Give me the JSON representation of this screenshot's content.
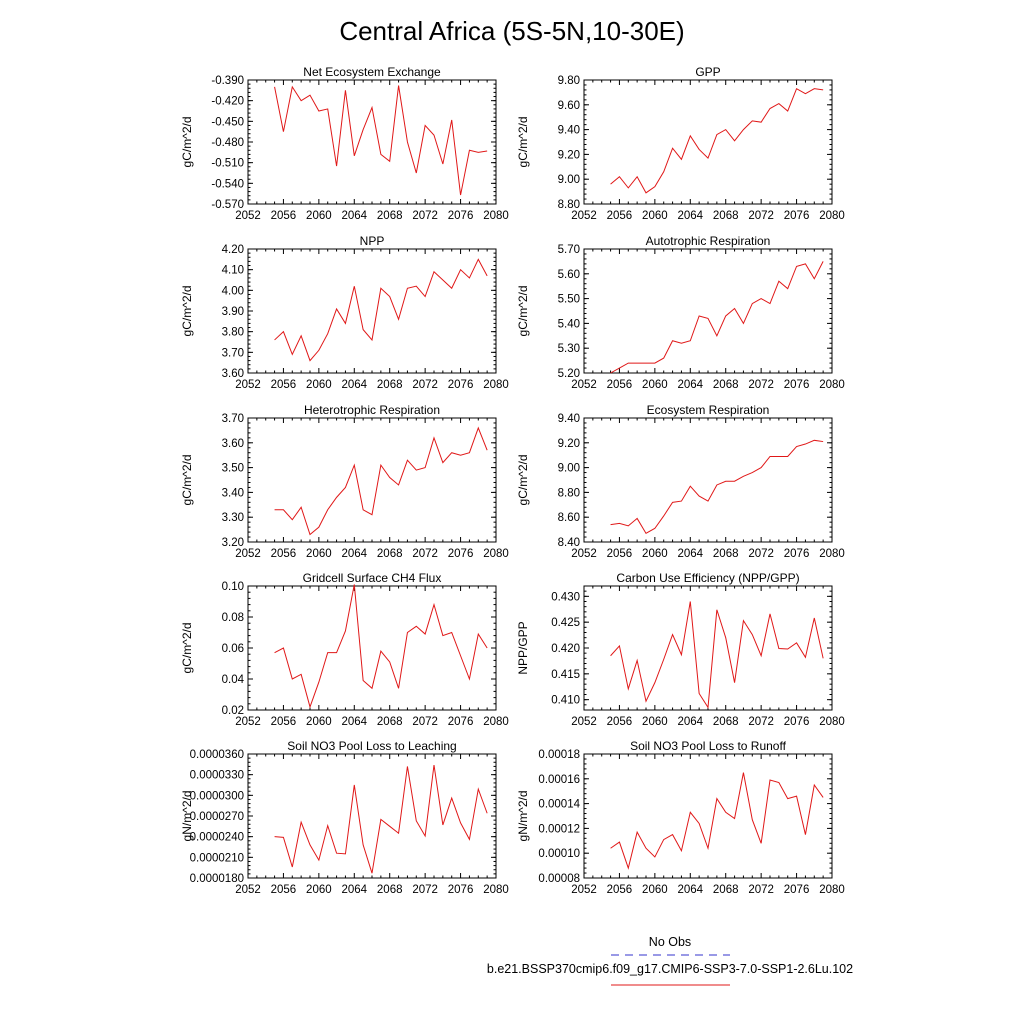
{
  "page_title": "Central Africa (5S-5N,10-30E)",
  "legend": {
    "obs_label": "No Obs",
    "obs_color": "#3333cc",
    "model_label": "b.e21.BSSP370cmip6.f09_g17.CMIP6-SSP3-7.0-SSP1-2.6Lu.102",
    "model_color": "#e01818"
  },
  "chart_data": [
    {
      "type": "line",
      "title": "Net Ecosystem Exchange",
      "ylabel": "gC/m^2/d",
      "xlim": [
        2052,
        2080
      ],
      "ylim": [
        -0.57,
        -0.39
      ],
      "xticks": [
        "2052",
        "2056",
        "2060",
        "2064",
        "2068",
        "2072",
        "2076",
        "2080"
      ],
      "yticks": [
        "-0.570",
        "-0.540",
        "-0.510",
        "-0.480",
        "-0.450",
        "-0.420",
        "-0.390"
      ],
      "x": [
        2055,
        2056,
        2057,
        2058,
        2059,
        2060,
        2061,
        2062,
        2063,
        2064,
        2065,
        2066,
        2067,
        2068,
        2069,
        2070,
        2071,
        2072,
        2073,
        2074,
        2075,
        2076,
        2077,
        2078,
        2079
      ],
      "series": [
        {
          "values": [
            -0.4,
            -0.465,
            -0.4,
            -0.42,
            -0.412,
            -0.435,
            -0.432,
            -0.515,
            -0.405,
            -0.5,
            -0.462,
            -0.43,
            -0.498,
            -0.508,
            -0.398,
            -0.48,
            -0.525,
            -0.456,
            -0.47,
            -0.512,
            -0.448,
            -0.557,
            -0.492,
            -0.495,
            -0.493
          ],
          "color": "#e01818"
        }
      ]
    },
    {
      "type": "line",
      "title": "GPP",
      "ylabel": "gC/m^2/d",
      "xlim": [
        2052,
        2080
      ],
      "ylim": [
        8.8,
        9.8
      ],
      "xticks": [
        "2052",
        "2056",
        "2060",
        "2064",
        "2068",
        "2072",
        "2076",
        "2080"
      ],
      "yticks": [
        "8.80",
        "9.00",
        "9.20",
        "9.40",
        "9.60",
        "9.80"
      ],
      "x": [
        2055,
        2056,
        2057,
        2058,
        2059,
        2060,
        2061,
        2062,
        2063,
        2064,
        2065,
        2066,
        2067,
        2068,
        2069,
        2070,
        2071,
        2072,
        2073,
        2074,
        2075,
        2076,
        2077,
        2078,
        2079
      ],
      "series": [
        {
          "values": [
            8.96,
            9.02,
            8.93,
            9.02,
            8.89,
            8.94,
            9.06,
            9.25,
            9.16,
            9.35,
            9.24,
            9.17,
            9.36,
            9.4,
            9.31,
            9.4,
            9.47,
            9.46,
            9.57,
            9.61,
            9.55,
            9.73,
            9.69,
            9.73,
            9.72
          ],
          "color": "#e01818"
        }
      ]
    },
    {
      "type": "line",
      "title": "NPP",
      "ylabel": "gC/m^2/d",
      "xlim": [
        2052,
        2080
      ],
      "ylim": [
        3.6,
        4.2
      ],
      "xticks": [
        "2052",
        "2056",
        "2060",
        "2064",
        "2068",
        "2072",
        "2076",
        "2080"
      ],
      "yticks": [
        "3.60",
        "3.70",
        "3.80",
        "3.90",
        "4.00",
        "4.10",
        "4.20"
      ],
      "x": [
        2055,
        2056,
        2057,
        2058,
        2059,
        2060,
        2061,
        2062,
        2063,
        2064,
        2065,
        2066,
        2067,
        2068,
        2069,
        2070,
        2071,
        2072,
        2073,
        2074,
        2075,
        2076,
        2077,
        2078,
        2079
      ],
      "series": [
        {
          "values": [
            3.76,
            3.8,
            3.69,
            3.78,
            3.66,
            3.71,
            3.79,
            3.91,
            3.84,
            4.02,
            3.81,
            3.76,
            4.01,
            3.97,
            3.86,
            4.01,
            4.02,
            3.97,
            4.09,
            4.05,
            4.01,
            4.1,
            4.06,
            4.15,
            4.07
          ],
          "color": "#e01818"
        }
      ]
    },
    {
      "type": "line",
      "title": "Autotrophic Respiration",
      "ylabel": "gC/m^2/d",
      "xlim": [
        2052,
        2080
      ],
      "ylim": [
        5.2,
        5.7
      ],
      "xticks": [
        "2052",
        "2056",
        "2060",
        "2064",
        "2068",
        "2072",
        "2076",
        "2080"
      ],
      "yticks": [
        "5.20",
        "5.30",
        "5.40",
        "5.50",
        "5.60",
        "5.70"
      ],
      "x": [
        2055,
        2056,
        2057,
        2058,
        2059,
        2060,
        2061,
        2062,
        2063,
        2064,
        2065,
        2066,
        2067,
        2068,
        2069,
        2070,
        2071,
        2072,
        2073,
        2074,
        2075,
        2076,
        2077,
        2078,
        2079
      ],
      "series": [
        {
          "values": [
            5.2,
            5.22,
            5.24,
            5.24,
            5.24,
            5.24,
            5.26,
            5.33,
            5.32,
            5.33,
            5.43,
            5.42,
            5.35,
            5.43,
            5.46,
            5.4,
            5.48,
            5.5,
            5.48,
            5.57,
            5.54,
            5.63,
            5.64,
            5.58,
            5.65
          ],
          "color": "#e01818"
        }
      ]
    },
    {
      "type": "line",
      "title": "Heterotrophic Respiration",
      "ylabel": "gC/m^2/d",
      "xlim": [
        2052,
        2080
      ],
      "ylim": [
        3.2,
        3.7
      ],
      "xticks": [
        "2052",
        "2056",
        "2060",
        "2064",
        "2068",
        "2072",
        "2076",
        "2080"
      ],
      "yticks": [
        "3.20",
        "3.30",
        "3.40",
        "3.50",
        "3.60",
        "3.70"
      ],
      "x": [
        2055,
        2056,
        2057,
        2058,
        2059,
        2060,
        2061,
        2062,
        2063,
        2064,
        2065,
        2066,
        2067,
        2068,
        2069,
        2070,
        2071,
        2072,
        2073,
        2074,
        2075,
        2076,
        2077,
        2078,
        2079
      ],
      "series": [
        {
          "values": [
            3.33,
            3.33,
            3.29,
            3.34,
            3.23,
            3.26,
            3.33,
            3.38,
            3.42,
            3.51,
            3.33,
            3.31,
            3.51,
            3.46,
            3.43,
            3.53,
            3.49,
            3.5,
            3.62,
            3.52,
            3.56,
            3.55,
            3.56,
            3.66,
            3.57
          ],
          "color": "#e01818"
        }
      ]
    },
    {
      "type": "line",
      "title": "Ecosystem Respiration",
      "ylabel": "gC/m^2/d",
      "xlim": [
        2052,
        2080
      ],
      "ylim": [
        8.4,
        9.4
      ],
      "xticks": [
        "2052",
        "2056",
        "2060",
        "2064",
        "2068",
        "2072",
        "2076",
        "2080"
      ],
      "yticks": [
        "8.40",
        "8.60",
        "8.80",
        "9.00",
        "9.20",
        "9.40"
      ],
      "x": [
        2055,
        2056,
        2057,
        2058,
        2059,
        2060,
        2061,
        2062,
        2063,
        2064,
        2065,
        2066,
        2067,
        2068,
        2069,
        2070,
        2071,
        2072,
        2073,
        2074,
        2075,
        2076,
        2077,
        2078,
        2079
      ],
      "series": [
        {
          "values": [
            8.54,
            8.55,
            8.53,
            8.59,
            8.47,
            8.51,
            8.61,
            8.72,
            8.73,
            8.85,
            8.77,
            8.73,
            8.86,
            8.89,
            8.89,
            8.93,
            8.96,
            9.0,
            9.09,
            9.09,
            9.09,
            9.17,
            9.19,
            9.22,
            9.21
          ],
          "color": "#e01818"
        }
      ]
    },
    {
      "type": "line",
      "title": "Gridcell Surface CH4 Flux",
      "ylabel": "gC/m^2/d",
      "xlim": [
        2052,
        2080
      ],
      "ylim": [
        0.02,
        0.1
      ],
      "xticks": [
        "2052",
        "2056",
        "2060",
        "2064",
        "2068",
        "2072",
        "2076",
        "2080"
      ],
      "yticks": [
        "0.02",
        "0.04",
        "0.06",
        "0.08",
        "0.10"
      ],
      "x": [
        2055,
        2056,
        2057,
        2058,
        2059,
        2060,
        2061,
        2062,
        2063,
        2064,
        2065,
        2066,
        2067,
        2068,
        2069,
        2070,
        2071,
        2072,
        2073,
        2074,
        2075,
        2076,
        2077,
        2078,
        2079
      ],
      "series": [
        {
          "values": [
            0.057,
            0.06,
            0.04,
            0.043,
            0.022,
            0.038,
            0.057,
            0.057,
            0.071,
            0.101,
            0.039,
            0.034,
            0.058,
            0.051,
            0.034,
            0.07,
            0.074,
            0.069,
            0.088,
            0.068,
            0.07,
            0.055,
            0.04,
            0.069,
            0.06
          ],
          "color": "#e01818"
        }
      ]
    },
    {
      "type": "line",
      "title": "Carbon Use Efficiency (NPP/GPP)",
      "ylabel": "NPP/GPP",
      "xlim": [
        2052,
        2080
      ],
      "ylim": [
        0.408,
        0.432
      ],
      "xticks": [
        "2052",
        "2056",
        "2060",
        "2064",
        "2068",
        "2072",
        "2076",
        "2080"
      ],
      "yticks": [
        "0.410",
        "0.415",
        "0.420",
        "0.425",
        "0.430"
      ],
      "x": [
        2055,
        2056,
        2057,
        2058,
        2059,
        2060,
        2061,
        2062,
        2063,
        2064,
        2065,
        2066,
        2067,
        2068,
        2069,
        2070,
        2071,
        2072,
        2073,
        2074,
        2075,
        2076,
        2077,
        2078,
        2079
      ],
      "series": [
        {
          "values": [
            0.4185,
            0.4204,
            0.4121,
            0.4176,
            0.4097,
            0.4133,
            0.4178,
            0.4226,
            0.4187,
            0.429,
            0.4112,
            0.4085,
            0.4274,
            0.422,
            0.4133,
            0.4253,
            0.4226,
            0.4185,
            0.4266,
            0.4199,
            0.4198,
            0.421,
            0.4182,
            0.4258,
            0.418
          ],
          "color": "#e01818"
        }
      ]
    },
    {
      "type": "line",
      "title": "Soil NO3 Pool Loss to Leaching",
      "ylabel": "gN/m^2/d",
      "xlim": [
        2052,
        2080
      ],
      "ylim": [
        1.8e-05,
        3.6e-05
      ],
      "xticks": [
        "2052",
        "2056",
        "2060",
        "2064",
        "2068",
        "2072",
        "2076",
        "2080"
      ],
      "yticks": [
        "0.0000180",
        "0.0000210",
        "0.0000240",
        "0.0000270",
        "0.0000300",
        "0.0000330",
        "0.0000360"
      ],
      "x": [
        2055,
        2056,
        2057,
        2058,
        2059,
        2060,
        2061,
        2062,
        2063,
        2064,
        2065,
        2066,
        2067,
        2068,
        2069,
        2070,
        2071,
        2072,
        2073,
        2074,
        2075,
        2076,
        2077,
        2078,
        2079
      ],
      "series": [
        {
          "values": [
            2.4e-05,
            2.39e-05,
            1.96e-05,
            2.61e-05,
            2.28e-05,
            2.06e-05,
            2.56e-05,
            2.16e-05,
            2.15e-05,
            3.15e-05,
            2.28e-05,
            1.87e-05,
            2.65e-05,
            2.55e-05,
            2.45e-05,
            3.42e-05,
            2.63e-05,
            2.41e-05,
            3.44e-05,
            2.57e-05,
            2.96e-05,
            2.6e-05,
            2.36e-05,
            3.09e-05,
            2.74e-05
          ],
          "color": "#e01818"
        }
      ]
    },
    {
      "type": "line",
      "title": "Soil NO3 Pool Loss to Runoff",
      "ylabel": "gN/m^2/d",
      "xlim": [
        2052,
        2080
      ],
      "ylim": [
        8e-05,
        0.00018
      ],
      "xticks": [
        "2052",
        "2056",
        "2060",
        "2064",
        "2068",
        "2072",
        "2076",
        "2080"
      ],
      "yticks": [
        "0.00008",
        "0.00010",
        "0.00012",
        "0.00014",
        "0.00016",
        "0.00018"
      ],
      "x": [
        2055,
        2056,
        2057,
        2058,
        2059,
        2060,
        2061,
        2062,
        2063,
        2064,
        2065,
        2066,
        2067,
        2068,
        2069,
        2070,
        2071,
        2072,
        2073,
        2074,
        2075,
        2076,
        2077,
        2078,
        2079
      ],
      "series": [
        {
          "values": [
            0.000104,
            0.000109,
            8.8e-05,
            0.000117,
            0.000104,
            9.7e-05,
            0.000111,
            0.000115,
            0.000102,
            0.000133,
            0.000124,
            0.000104,
            0.000144,
            0.000133,
            0.000128,
            0.000165,
            0.000127,
            0.000108,
            0.000159,
            0.000157,
            0.000144,
            0.000146,
            0.000115,
            0.000155,
            0.000145
          ],
          "color": "#e01818"
        }
      ]
    }
  ]
}
